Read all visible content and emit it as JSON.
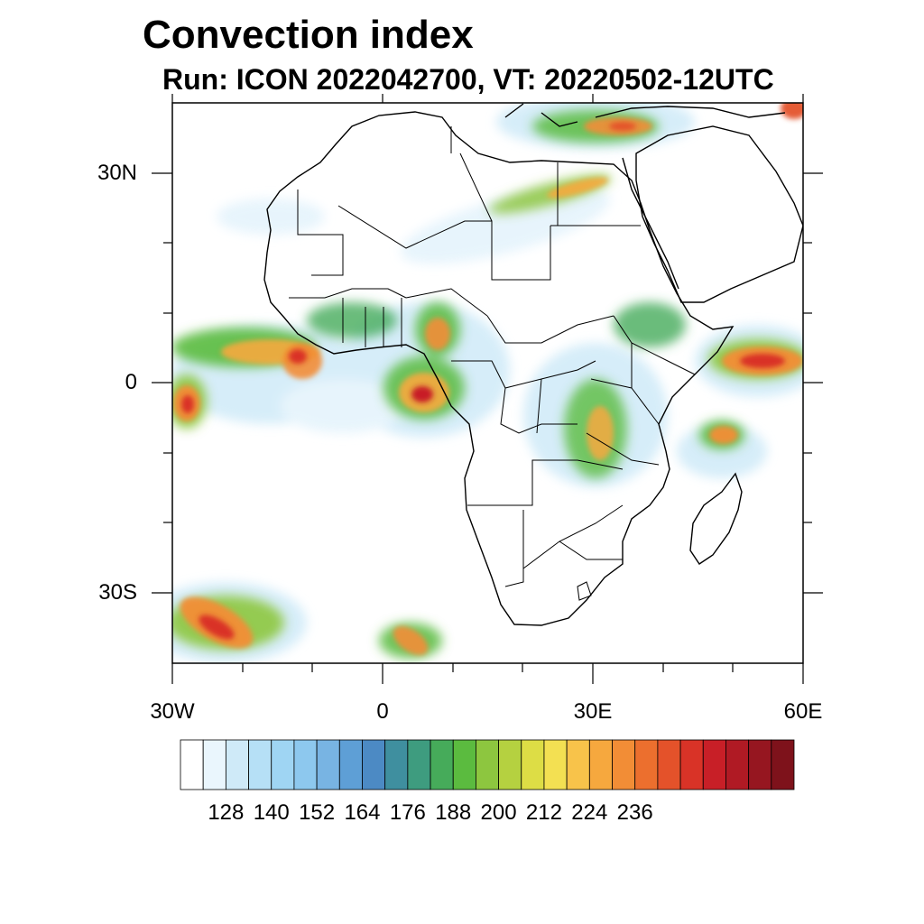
{
  "title": "Convection index",
  "subtitle": "Run: ICON 2022042700,  VT: 20220502-12UTC",
  "lat_labels": [
    "30N",
    "0",
    "30S"
  ],
  "lon_labels": [
    "30W",
    "0",
    "30E",
    "60E"
  ],
  "colorbar": {
    "colors": [
      "#ffffff",
      "#eaf6fd",
      "#cfeaf8",
      "#b6e0f6",
      "#9fd5f3",
      "#8dc8ee",
      "#78b4e3",
      "#5e9fd6",
      "#4c8ac4",
      "#3f8f9f",
      "#3e9c7f",
      "#46ab5a",
      "#5bbb3f",
      "#8dc63f",
      "#b5d140",
      "#dddd45",
      "#f3e052",
      "#f8c34a",
      "#f6a83e",
      "#f28d36",
      "#ec6f2e",
      "#e4522a",
      "#d93327",
      "#c81f27",
      "#b01a24",
      "#961620",
      "#7e121b"
    ],
    "labels": [
      "128",
      "140",
      "152",
      "164",
      "176",
      "188",
      "200",
      "212",
      "224",
      "236"
    ]
  }
}
